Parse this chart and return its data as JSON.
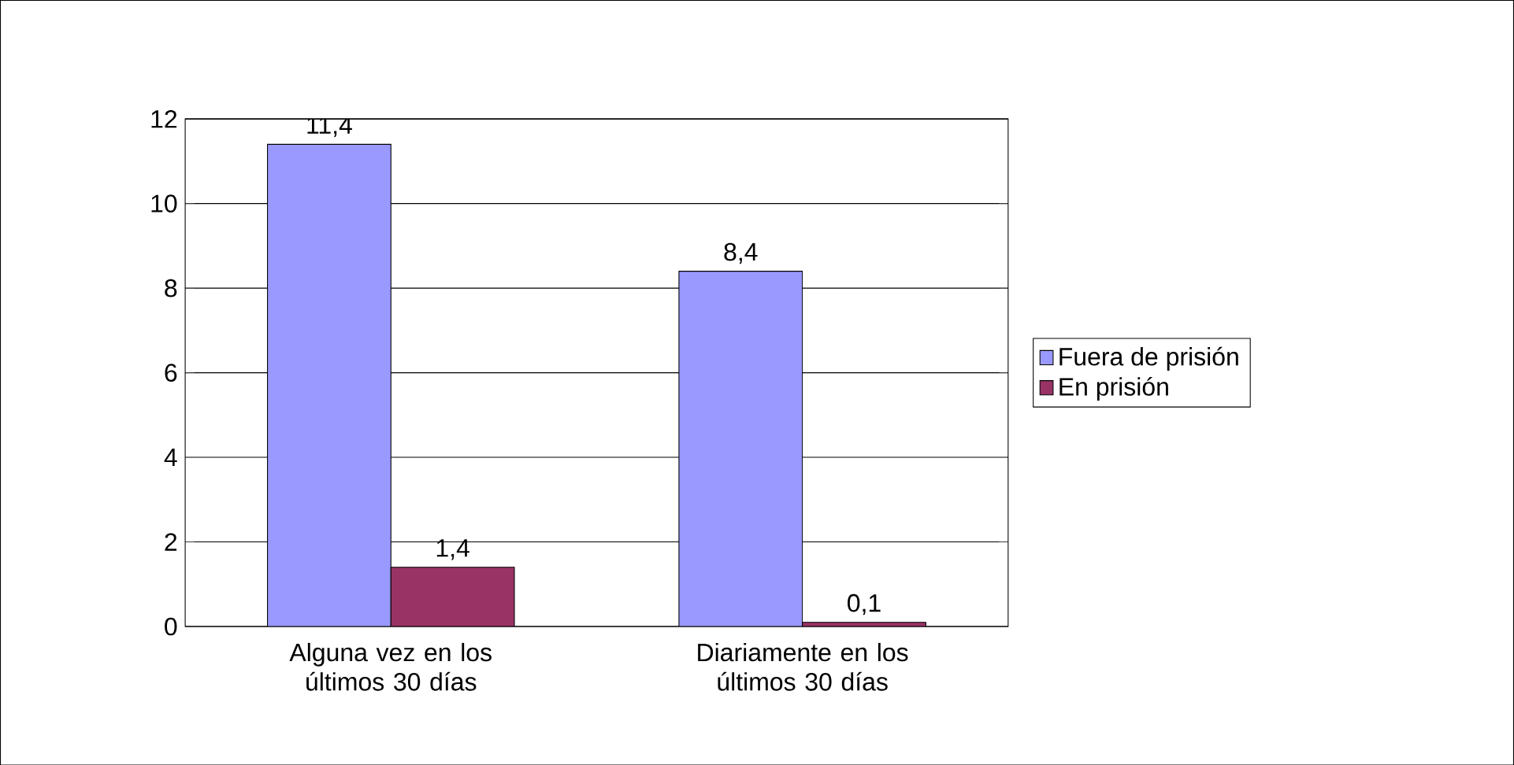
{
  "chart_data": {
    "type": "bar",
    "categories": [
      "Alguna vez en los últimos 30 días",
      "Diariamente en los últimos 30 días"
    ],
    "series": [
      {
        "name": "Fuera de prisión",
        "color": "#9999ff",
        "values": [
          11.4,
          8.4
        ],
        "value_labels": [
          "11,4",
          "8,4"
        ]
      },
      {
        "name": "En prisión",
        "color": "#993366",
        "values": [
          1.4,
          0.1
        ],
        "value_labels": [
          "1,4",
          "0,1"
        ]
      }
    ],
    "ylim": [
      0,
      12
    ],
    "yticks": [
      0,
      2,
      4,
      6,
      8,
      10,
      12
    ],
    "grid": "y",
    "legend": "right"
  }
}
